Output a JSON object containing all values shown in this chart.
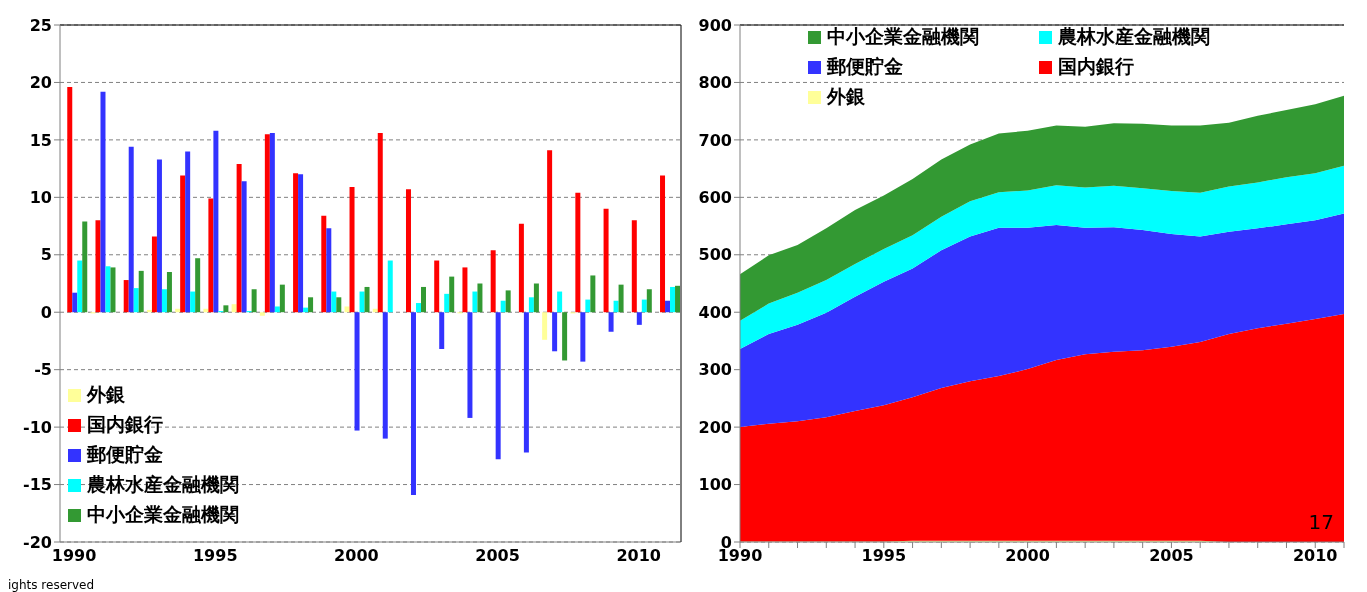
{
  "chart_data": [
    {
      "type": "bar",
      "categories": [
        "1990",
        null,
        null,
        null,
        null,
        "1995",
        null,
        null,
        null,
        null,
        "2000",
        null,
        null,
        null,
        null,
        "2005",
        null,
        null,
        null,
        null,
        "2010",
        null
      ],
      "series": [
        {
          "name": "外銀",
          "color": "#ffff99",
          "values": [
            0,
            -0.1,
            0,
            0.2,
            0.3,
            0.3,
            0.7,
            -0.3,
            0,
            0,
            0.5,
            0.3,
            0,
            0,
            -0.1,
            0,
            0,
            -2.4,
            -0.1,
            0,
            0,
            0
          ]
        },
        {
          "name": "国内銀行",
          "color": "#ff0000",
          "values": [
            19.6,
            8.0,
            2.8,
            6.6,
            11.9,
            9.9,
            12.9,
            15.5,
            12.1,
            8.4,
            10.9,
            15.6,
            10.7,
            4.5,
            3.9,
            5.4,
            7.7,
            14.1,
            10.4,
            9.0,
            8.0,
            11.9
          ]
        },
        {
          "name": "郵便貯金",
          "color": "#3333ff",
          "values": [
            1.7,
            19.2,
            14.4,
            13.3,
            14.0,
            15.8,
            11.4,
            15.6,
            12.0,
            7.3,
            -10.3,
            -11.0,
            -15.9,
            -3.2,
            -9.2,
            -12.8,
            -12.2,
            -3.4,
            -4.3,
            -1.7,
            -1.1,
            1.0
          ]
        },
        {
          "name": "農林水産金融機関",
          "color": "#00ffff",
          "values": [
            4.5,
            4.0,
            2.1,
            2.0,
            1.8,
            0.1,
            0.1,
            0.5,
            0.4,
            1.8,
            1.8,
            4.5,
            0.8,
            1.6,
            1.8,
            1.0,
            1.3,
            1.8,
            1.1,
            1.0,
            1.1,
            2.2
          ]
        },
        {
          "name": "中小企業金融機関",
          "color": "#339933",
          "values": [
            7.9,
            3.9,
            3.6,
            3.5,
            4.7,
            0.6,
            2.0,
            2.4,
            1.3,
            1.3,
            2.2,
            0,
            2.2,
            3.1,
            2.5,
            1.9,
            2.5,
            -4.2,
            3.2,
            2.4,
            2.0,
            2.3
          ]
        }
      ],
      "ylim": [
        -20,
        25
      ],
      "yticks": [
        -20,
        -15,
        -10,
        -5,
        0,
        5,
        10,
        15,
        20,
        25
      ],
      "grid": "y",
      "legend": "bottom left",
      "annotations": [
        "ights reserved"
      ]
    },
    {
      "type": "area",
      "stacked": true,
      "x": [
        1990,
        1991,
        1992,
        1993,
        1994,
        1995,
        1996,
        1997,
        1998,
        1999,
        2000,
        2001,
        2002,
        2003,
        2004,
        2005,
        2006,
        2007,
        2008,
        2009,
        2010,
        2011
      ],
      "series": [
        {
          "name": "外銀",
          "color": "#ffff99",
          "values": [
            1,
            1,
            1,
            1,
            1,
            1,
            2,
            2,
            2,
            2,
            2,
            2,
            2,
            2,
            2,
            2,
            2,
            0,
            0,
            0,
            0,
            0
          ]
        },
        {
          "name": "国内銀行",
          "color": "#ff0000",
          "values": [
            199,
            205,
            209,
            216,
            227,
            237,
            250,
            266,
            278,
            287,
            299,
            315,
            325,
            329,
            332,
            338,
            346,
            362,
            372,
            380,
            388,
            397
          ]
        },
        {
          "name": "郵便貯金",
          "color": "#3333ff",
          "values": [
            136,
            156,
            168,
            182,
            199,
            215,
            224,
            240,
            252,
            258,
            246,
            235,
            220,
            217,
            209,
            196,
            184,
            178,
            174,
            173,
            172,
            175
          ]
        },
        {
          "name": "農林水産金融機関",
          "color": "#00ffff",
          "values": [
            49,
            53,
            56,
            57,
            57,
            57,
            58,
            58,
            61,
            62,
            65,
            69,
            70,
            72,
            73,
            75,
            76,
            79,
            80,
            82,
            82,
            83
          ]
        },
        {
          "name": "中小企業金融機関",
          "color": "#339933",
          "values": [
            81,
            84,
            83,
            90,
            94,
            93,
            98,
            100,
            99,
            102,
            104,
            104,
            106,
            109,
            112,
            114,
            117,
            111,
            116,
            117,
            120,
            122
          ]
        }
      ],
      "xlim": [
        1990,
        2011
      ],
      "xticks": [
        1990,
        {
          "value": 1991,
          "label": null
        },
        {
          "value": 1992,
          "label": null
        },
        {
          "value": 1993,
          "label": null
        },
        {
          "value": 1994,
          "label": null
        },
        1995,
        {
          "value": 1996,
          "label": null
        },
        {
          "value": 1997,
          "label": null
        },
        {
          "value": 1998,
          "label": null
        },
        {
          "value": 1999,
          "label": null
        },
        2000,
        {
          "value": 2001,
          "label": null
        },
        {
          "value": 2002,
          "label": null
        },
        {
          "value": 2003,
          "label": null
        },
        {
          "value": 2004,
          "label": null
        },
        2005,
        {
          "value": 2006,
          "label": null
        },
        {
          "value": 2007,
          "label": null
        },
        {
          "value": 2008,
          "label": null
        },
        {
          "value": 2009,
          "label": null
        },
        2010,
        {
          "value": 2011,
          "label": null
        }
      ],
      "ylim": [
        0,
        900
      ],
      "yticks": [
        0,
        100,
        200,
        300,
        400,
        500,
        600,
        700,
        800,
        900
      ],
      "grid": "y",
      "legend": "top left",
      "annotations": [
        "17"
      ]
    }
  ]
}
